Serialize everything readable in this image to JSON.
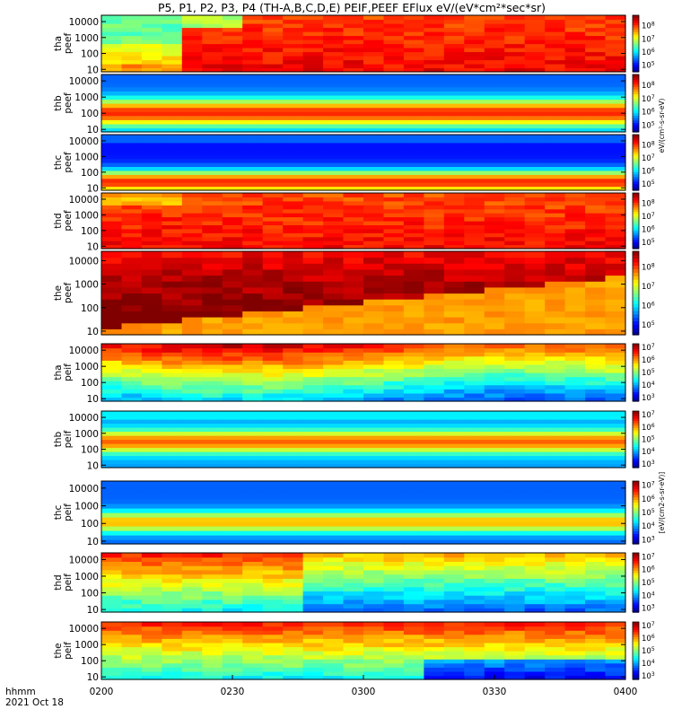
{
  "chart_data": {
    "type": "heatmap",
    "title": "P5, P1, P2, P3, P4 (TH-A,B,C,D,E) PEIF,PEEF EFlux eV/(eV*cm²*sec*sr)",
    "x_ticks": [
      "0200",
      "0230",
      "0300",
      "0330",
      "0400"
    ],
    "xlabel": "hhmm",
    "date": "2021 Oct 18",
    "y_ticks": [
      "10",
      "100",
      "1000",
      "10000"
    ],
    "y_range_eV": [
      7,
      25000
    ],
    "y_scale": "log",
    "ion_colorbar_label": "eV/(cm²-s-sr-eV)",
    "electron_colorbar_label": "[eV/(cm2-s-sr-eV)]",
    "panels": [
      {
        "probe": "tha",
        "species": "peef",
        "label": [
          "tha",
          "peef"
        ],
        "colorbar_ticks": [
          "10^5",
          "10^6",
          "10^7",
          "10^8"
        ],
        "clim_log": [
          4.5,
          8.8
        ]
      },
      {
        "probe": "thb",
        "species": "peef",
        "label": [
          "thb",
          "peef"
        ],
        "colorbar_ticks": [
          "10^5",
          "10^6",
          "10^7",
          "10^8"
        ],
        "clim_log": [
          4.5,
          8.8
        ]
      },
      {
        "probe": "thc",
        "species": "peef",
        "label": [
          "thc",
          "peef"
        ],
        "colorbar_ticks": [
          "10^5",
          "10^6",
          "10^7",
          "10^8"
        ],
        "clim_log": [
          4.5,
          8.8
        ]
      },
      {
        "probe": "thd",
        "species": "peef",
        "label": [
          "thd",
          "peef"
        ],
        "colorbar_ticks": [
          "10^5",
          "10^6",
          "10^7",
          "10^8"
        ],
        "clim_log": [
          4.5,
          8.8
        ]
      },
      {
        "probe": "the",
        "species": "peef",
        "label": [
          "the",
          "peef"
        ],
        "colorbar_ticks": [
          "10^5",
          "10^6",
          "10^7",
          "10^8"
        ],
        "clim_log": [
          4.5,
          8.8
        ]
      },
      {
        "probe": "tha",
        "species": "peif",
        "label": [
          "tha",
          "peif"
        ],
        "colorbar_ticks": [
          "10^3",
          "10^4",
          "10^5",
          "10^6",
          "10^7"
        ],
        "clim_log": [
          2.7,
          7.3
        ]
      },
      {
        "probe": "thb",
        "species": "peif",
        "label": [
          "thb",
          "peif"
        ],
        "colorbar_ticks": [
          "10^3",
          "10^4",
          "10^5",
          "10^6",
          "10^7"
        ],
        "clim_log": [
          2.7,
          7.3
        ]
      },
      {
        "probe": "thc",
        "species": "peif",
        "label": [
          "thc",
          "peif"
        ],
        "colorbar_ticks": [
          "10^3",
          "10^4",
          "10^5",
          "10^6",
          "10^7"
        ],
        "clim_log": [
          2.7,
          7.3
        ]
      },
      {
        "probe": "thd",
        "species": "peif",
        "label": [
          "thd",
          "peif"
        ],
        "colorbar_ticks": [
          "10^3",
          "10^4",
          "10^5",
          "10^6",
          "10^7"
        ],
        "clim_log": [
          2.7,
          7.3
        ]
      },
      {
        "probe": "the",
        "species": "peif",
        "label": [
          "the",
          "peif"
        ],
        "colorbar_ticks": [
          "10^3",
          "10^4",
          "10^5",
          "10^6",
          "10^7"
        ],
        "clim_log": [
          2.7,
          7.3
        ]
      }
    ]
  }
}
